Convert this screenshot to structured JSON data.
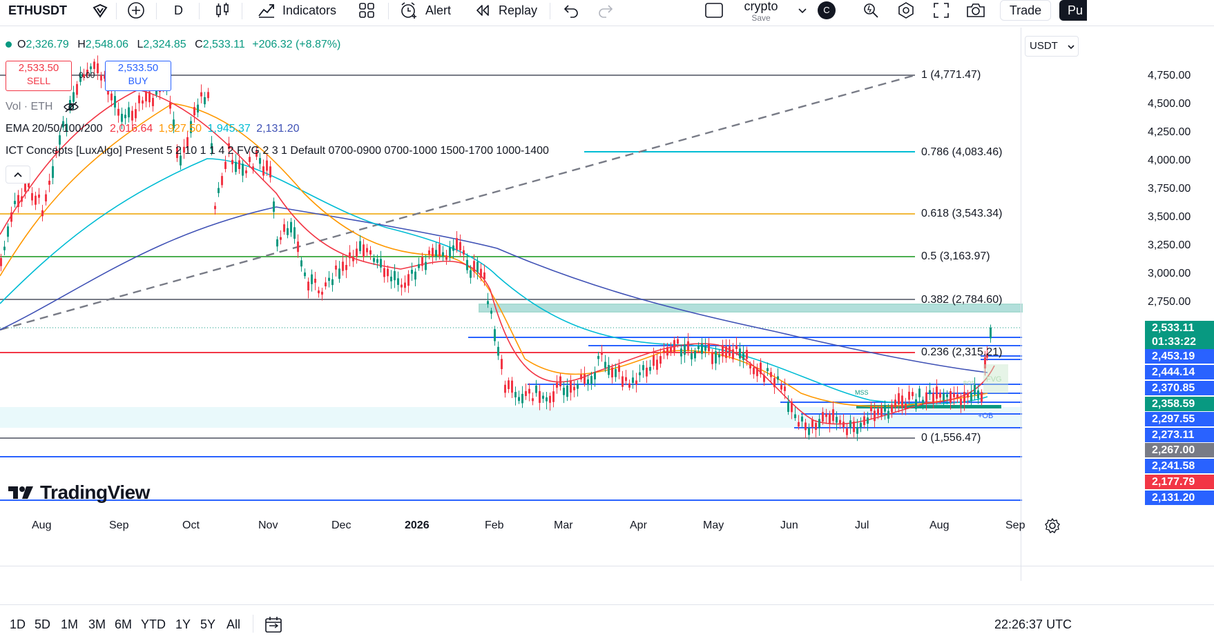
{
  "toolbar": {
    "symbol": "ETHUSDT",
    "interval": "D",
    "indicators_label": "Indicators",
    "alert_label": "Alert",
    "replay_label": "Replay",
    "layout_name": "crypto",
    "save_label": "Save",
    "avatar_letter": "C",
    "trade_label": "Trade",
    "publish_partial": "Pu"
  },
  "legend": {
    "ohlc": {
      "o_label": "O",
      "o": "2,326.79",
      "h_label": "H",
      "h": "2,548.06",
      "l_label": "L",
      "l": "2,324.85",
      "c_label": "C",
      "c": "2,533.11",
      "change": "+206.32 (+8.87%)"
    },
    "sell_price": "2,533.50",
    "sell_label": "SELL",
    "spread": "0.00",
    "buy_price": "2,533.50",
    "buy_label": "BUY",
    "vol_label": "Vol · ETH",
    "ema_label": "EMA 20/50/100/200",
    "ema_values": [
      "2,016.64",
      "1,927.50",
      "1,945.37",
      "2,131.20"
    ],
    "ema_colors": [
      "#f23645",
      "#ff9800",
      "#00bcd4",
      "#3f51b5"
    ],
    "ict_label": "ICT Concepts [LuxAlgo] Present 5 2 10 1 1 4 2 FVG 2 3 1 Default 0700-0900 0700-1000 1500-1700 1000-1400"
  },
  "currency": "USDT",
  "fib_levels": [
    {
      "label": "1 (4,771.47)",
      "color": "#787b86"
    },
    {
      "label": "0.786 (4,083.46)",
      "color": "#00bcd4"
    },
    {
      "label": "0.618 (3,543.34)",
      "color": "#f2b93b"
    },
    {
      "label": "0.5 (3,163.97)",
      "color": "#4caf50"
    },
    {
      "label": "0.382 (2,784.60)",
      "color": "#787b86"
    },
    {
      "label": "0.236 (2,315.21)",
      "color": "#f23645"
    },
    {
      "label": "0 (1,556.47)",
      "color": "#787b86"
    }
  ],
  "chart_labels": {
    "mss": "MSS",
    "fvg": "FVG",
    "ob": "+OB",
    "bos": "BOS"
  },
  "price_axis": [
    "4,750.00",
    "4,500.00",
    "4,250.00",
    "4,000.00",
    "3,750.00",
    "3,500.00",
    "3,250.00",
    "3,000.00",
    "2,750.00"
  ],
  "price_tags": [
    {
      "text": "2,533.11",
      "color": "#089981"
    },
    {
      "text": "01:33:22",
      "color": "#089981"
    },
    {
      "text": "2,453.19",
      "color": "#2962ff"
    },
    {
      "text": "2,444.14",
      "color": "#2962ff"
    },
    {
      "text": "2,370.85",
      "color": "#2962ff"
    },
    {
      "text": "2,358.59",
      "color": "#089981"
    },
    {
      "text": "2,297.55",
      "color": "#2962ff"
    },
    {
      "text": "2,273.11",
      "color": "#2962ff"
    },
    {
      "text": "2,267.00",
      "color": "#787b86"
    },
    {
      "text": "2,241.58",
      "color": "#2962ff"
    },
    {
      "text": "2,177.79",
      "color": "#f23645"
    },
    {
      "text": "2,131.20",
      "color": "#2962ff"
    }
  ],
  "time_axis": [
    "Aug",
    "Sep",
    "Oct",
    "Nov",
    "Dec",
    "2026",
    "Feb",
    "Mar",
    "Apr",
    "May",
    "Jun",
    "Jul",
    "Aug",
    "Sep"
  ],
  "ranges": [
    "1D",
    "5D",
    "1M",
    "3M",
    "6M",
    "YTD",
    "1Y",
    "5Y",
    "All"
  ],
  "clock": "22:26:37 UTC",
  "watermark": "TradingView"
}
